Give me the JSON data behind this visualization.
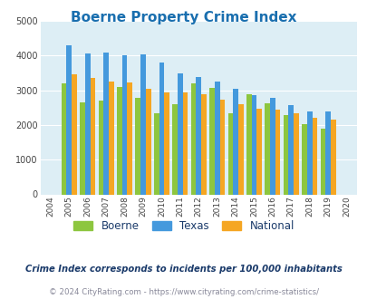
{
  "title": "Boerne Property Crime Index",
  "years": [
    2004,
    2005,
    2006,
    2007,
    2008,
    2009,
    2010,
    2011,
    2012,
    2013,
    2014,
    2015,
    2016,
    2017,
    2018,
    2019,
    2020
  ],
  "boerne": [
    0,
    3200,
    2650,
    2700,
    3100,
    2775,
    2350,
    2600,
    3200,
    3075,
    2350,
    2875,
    2625,
    2275,
    2025,
    1900,
    0
  ],
  "texas": [
    0,
    4300,
    4075,
    4100,
    4000,
    4025,
    3800,
    3500,
    3375,
    3250,
    3050,
    2850,
    2775,
    2575,
    2400,
    2400,
    0
  ],
  "national": [
    0,
    3450,
    3350,
    3250,
    3225,
    3050,
    2950,
    2950,
    2875,
    2725,
    2600,
    2475,
    2450,
    2350,
    2200,
    2150,
    0
  ],
  "boerne_color": "#8dc63f",
  "texas_color": "#4499dd",
  "national_color": "#f5a623",
  "bg_color": "#ddeef5",
  "ylim": [
    0,
    5000
  ],
  "yticks": [
    0,
    1000,
    2000,
    3000,
    4000,
    5000
  ],
  "subtitle": "Crime Index corresponds to incidents per 100,000 inhabitants",
  "footer": "© 2024 CityRating.com - https://www.cityrating.com/crime-statistics/",
  "legend_labels": [
    "Boerne",
    "Texas",
    "National"
  ],
  "title_color": "#1a6faf",
  "subtitle_color": "#1a3a6a",
  "footer_color": "#888899"
}
